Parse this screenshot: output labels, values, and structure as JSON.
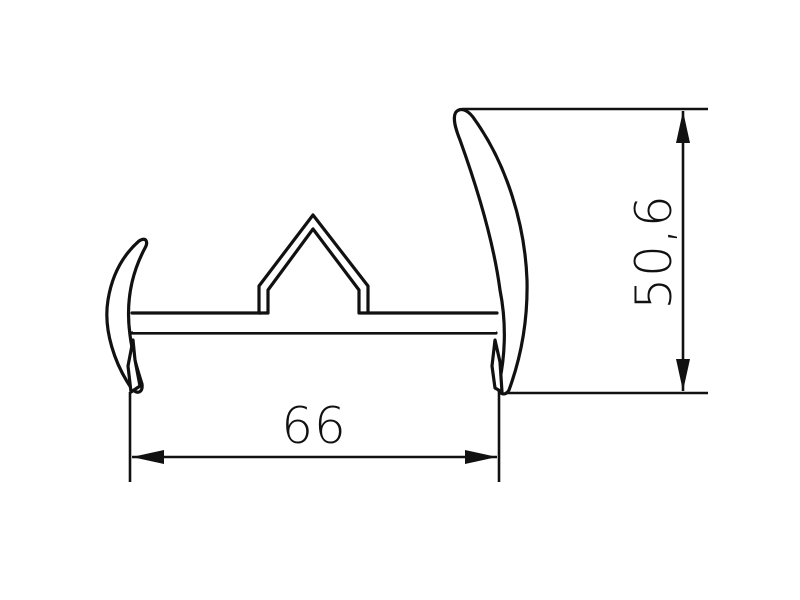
{
  "drawing": {
    "width_label": "66",
    "height_label": "50,6",
    "line_color": "#111111",
    "background_color": "#ffffff"
  }
}
